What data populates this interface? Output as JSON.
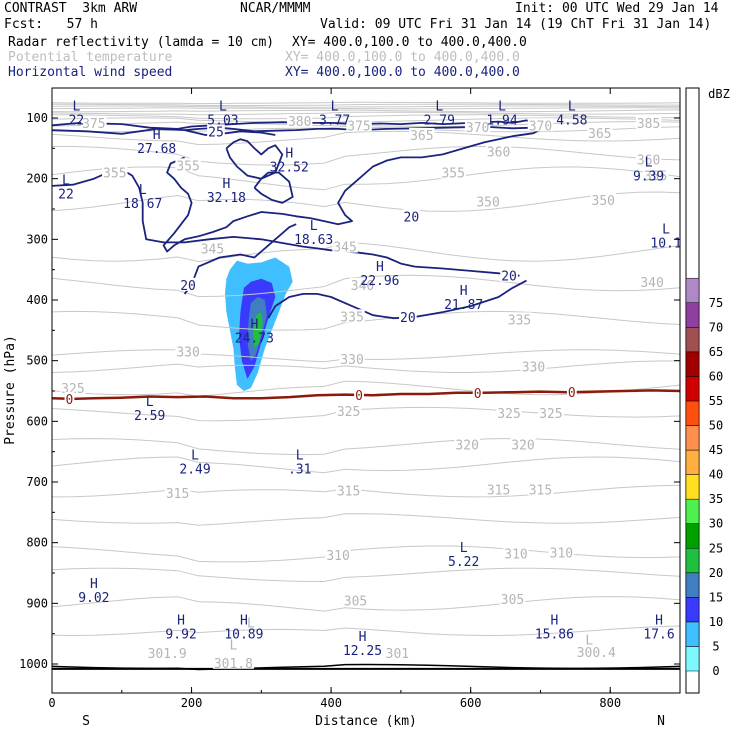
{
  "header": {
    "model": "CONTRAST  3km ARW",
    "center": "NCAR/MMMM",
    "init": "Init: 00 UTC Wed 29 Jan 14",
    "fcst": "Fcst:   57 h",
    "valid": "Valid: 09 UTC Fri 31 Jan 14 (19 ChT Fri 31 Jan 14)",
    "fields": [
      {
        "name": "Radar reflectivity (lamda = 10 cm)",
        "xy": "XY= 400.0,100.0 to 400.0,400.0",
        "color": "#000000"
      },
      {
        "name": "Potential temperature",
        "xy": "XY= 400.0,100.0 to 400.0,400.0",
        "color": "#bdbdbd"
      },
      {
        "name": "Horizontal wind speed",
        "xy": "XY= 400.0,100.0 to 400.0,400.0",
        "color": "#1a237e"
      }
    ]
  },
  "chart_data": {
    "type": "contour",
    "xlabel": "Distance (km)",
    "ylabel": "Pressure (hPa)",
    "xlim": [
      0,
      900
    ],
    "ylim": [
      1050,
      70
    ],
    "x_ticks": [
      "0",
      "200",
      "400",
      "600",
      "800"
    ],
    "y_ticks": [
      "100",
      "200",
      "300",
      "400",
      "500",
      "600",
      "700",
      "800",
      "900",
      "1000"
    ],
    "x_end_labels": {
      "left": "S",
      "right": "N"
    },
    "colorbar": {
      "unit": "dBZ",
      "levels": [
        "0",
        "5",
        "10",
        "15",
        "20",
        "25",
        "30",
        "35",
        "40",
        "45",
        "50",
        "55",
        "60",
        "65",
        "70",
        "75"
      ],
      "colors": [
        "#ffffff",
        "#7ff7ff",
        "#3fbfff",
        "#3a3aff",
        "#3f7fbf",
        "#1fbf3f",
        "#00a000",
        "#4fef4f",
        "#ffdf1f",
        "#ffaf3f",
        "#ff8f4f",
        "#ff4f0f",
        "#d00000",
        "#a00000",
        "#a05050",
        "#8f3fa0",
        "#b088c8"
      ]
    },
    "theta_labels": [
      {
        "text": "375",
        "x": 60,
        "p": 108
      },
      {
        "text": "380",
        "x": 355,
        "p": 105
      },
      {
        "text": "375",
        "x": 440,
        "p": 112
      },
      {
        "text": "370",
        "x": 610,
        "p": 115
      },
      {
        "text": "370",
        "x": 700,
        "p": 112
      },
      {
        "text": "365",
        "x": 785,
        "p": 125
      },
      {
        "text": "385",
        "x": 855,
        "p": 108
      },
      {
        "text": "365",
        "x": 530,
        "p": 128
      },
      {
        "text": "360",
        "x": 640,
        "p": 155
      },
      {
        "text": "360",
        "x": 855,
        "p": 168
      },
      {
        "text": "355",
        "x": 90,
        "p": 190
      },
      {
        "text": "355",
        "x": 195,
        "p": 178
      },
      {
        "text": "355",
        "x": 575,
        "p": 190
      },
      {
        "text": "355",
        "x": 865,
        "p": 195
      },
      {
        "text": "350",
        "x": 790,
        "p": 235
      },
      {
        "text": "350",
        "x": 625,
        "p": 238
      },
      {
        "text": "345",
        "x": 230,
        "p": 315
      },
      {
        "text": "345",
        "x": 420,
        "p": 312
      },
      {
        "text": "340",
        "x": 445,
        "p": 375
      },
      {
        "text": "340",
        "x": 860,
        "p": 370
      },
      {
        "text": "335",
        "x": 430,
        "p": 427
      },
      {
        "text": "335",
        "x": 670,
        "p": 432
      },
      {
        "text": "330",
        "x": 195,
        "p": 485
      },
      {
        "text": "330",
        "x": 430,
        "p": 497
      },
      {
        "text": "330",
        "x": 690,
        "p": 510
      },
      {
        "text": "325",
        "x": 30,
        "p": 545
      },
      {
        "text": "325",
        "x": 425,
        "p": 583
      },
      {
        "text": "325",
        "x": 655,
        "p": 586
      },
      {
        "text": "325",
        "x": 715,
        "p": 586
      },
      {
        "text": "320",
        "x": 595,
        "p": 638
      },
      {
        "text": "320",
        "x": 675,
        "p": 638
      },
      {
        "text": "315",
        "x": 180,
        "p": 718
      },
      {
        "text": "315",
        "x": 425,
        "p": 714
      },
      {
        "text": "315",
        "x": 640,
        "p": 712
      },
      {
        "text": "315",
        "x": 700,
        "p": 712
      },
      {
        "text": "310",
        "x": 410,
        "p": 820
      },
      {
        "text": "310",
        "x": 665,
        "p": 818
      },
      {
        "text": "310",
        "x": 730,
        "p": 816
      },
      {
        "text": "305",
        "x": 435,
        "p": 895
      },
      {
        "text": "305",
        "x": 660,
        "p": 893
      },
      {
        "text": "301",
        "x": 495,
        "p": 982
      },
      {
        "text": "301.9",
        "x": 165,
        "p": 982
      },
      {
        "text": "301.8",
        "x": 260,
        "p": 998
      },
      {
        "text": "300.4",
        "x": 780,
        "p": 980
      }
    ],
    "theta_LH": [
      {
        "text": "L",
        "x": 285,
        "p": 932
      },
      {
        "text": "L",
        "x": 260,
        "p": 968
      },
      {
        "text": "L",
        "x": 770,
        "p": 960
      }
    ],
    "wind_extrema": [
      {
        "kind": "L",
        "value": "22",
        "x": 35,
        "p": 88
      },
      {
        "kind": "L",
        "value": "5.03",
        "x": 245,
        "p": 88
      },
      {
        "kind": "L",
        "value": "3.77",
        "x": 405,
        "p": 88
      },
      {
        "kind": "L",
        "value": "2.79",
        "x": 555,
        "p": 88
      },
      {
        "kind": "L",
        "value": "1.94",
        "x": 645,
        "p": 88
      },
      {
        "kind": "L",
        "value": "4.58",
        "x": 745,
        "p": 88
      },
      {
        "kind": "H",
        "value": "27.68",
        "x": 150,
        "p": 135
      },
      {
        "kind": "H",
        "value": "32.52",
        "x": 340,
        "p": 165
      },
      {
        "kind": "H",
        "value": "32.18",
        "x": 250,
        "p": 215
      },
      {
        "kind": "L",
        "value": "18.67",
        "x": 130,
        "p": 225
      },
      {
        "kind": "L",
        "value": "22",
        "x": 20,
        "p": 210
      },
      {
        "kind": "L",
        "value": "9.39",
        "x": 855,
        "p": 180
      },
      {
        "kind": "L",
        "value": "18.63",
        "x": 375,
        "p": 285
      },
      {
        "kind": "L",
        "value": "10.1",
        "x": 880,
        "p": 290
      },
      {
        "kind": "H",
        "value": "22.96",
        "x": 470,
        "p": 352
      },
      {
        "kind": "H",
        "value": "21.87",
        "x": 590,
        "p": 392
      },
      {
        "kind": "H",
        "value": "24.73",
        "x": 290,
        "p": 447
      },
      {
        "kind": "L",
        "value": "2.59",
        "x": 140,
        "p": 575
      },
      {
        "kind": "L",
        "value": "2.49",
        "x": 205,
        "p": 663
      },
      {
        "kind": "L",
        "value": ".31",
        "x": 355,
        "p": 663
      },
      {
        "kind": "L",
        "value": "5.22",
        "x": 590,
        "p": 815
      },
      {
        "kind": "H",
        "value": "9.02",
        "x": 60,
        "p": 875
      },
      {
        "kind": "H",
        "value": "9.92",
        "x": 185,
        "p": 935
      },
      {
        "kind": "H",
        "value": "10.89",
        "x": 275,
        "p": 935
      },
      {
        "kind": "H",
        "value": "12.25",
        "x": 445,
        "p": 962
      },
      {
        "kind": "H",
        "value": "15.86",
        "x": 720,
        "p": 935
      },
      {
        "kind": "H",
        "value": "17.6",
        "x": 870,
        "p": 935
      }
    ],
    "wind_contour_labels": [
      {
        "text": "25",
        "x": 235,
        "p": 122
      },
      {
        "text": "20",
        "x": 195,
        "p": 375
      },
      {
        "text": "20",
        "x": 515,
        "p": 262
      },
      {
        "text": "20",
        "x": 655,
        "p": 360
      },
      {
        "text": "20",
        "x": 510,
        "p": 428
      }
    ],
    "wind_contours": [
      {
        "x": [
          0,
          40,
          100,
          140,
          180,
          200,
          230,
          260,
          290,
          330,
          360,
          400,
          440,
          470,
          500,
          530,
          560,
          600,
          640,
          660,
          680,
          700
        ],
        "p": [
          112,
          108,
          110,
          116,
          118,
          114,
          112,
          110,
          108,
          107,
          108,
          108,
          110,
          109,
          110,
          108,
          110,
          108,
          106,
          108,
          104,
          110
        ]
      },
      {
        "x": [
          0,
          50,
          100,
          150,
          190,
          220,
          250,
          270,
          300,
          320
        ],
        "p": [
          120,
          122,
          126,
          118,
          120,
          128,
          125,
          122,
          124,
          128
        ]
      },
      {
        "x": [
          190,
          210,
          240,
          260,
          290,
          320,
          350,
          380,
          410,
          440,
          480,
          520,
          560,
          600,
          630,
          660,
          690,
          700,
          690,
          660,
          640,
          620,
          590,
          560,
          530,
          500,
          480,
          460,
          440,
          420,
          410,
          420,
          430,
          410,
          390,
          370,
          350,
          330,
          300,
          280,
          260,
          250,
          230,
          210,
          190,
          175,
          165,
          160,
          175,
          195,
          200,
          195,
          185,
          175,
          165,
          170,
          190
        ],
        "p": [
          120,
          118,
          116,
          118,
          122,
          121,
          120,
          118,
          118,
          120,
          118,
          117,
          116,
          115,
          115,
          117,
          116,
          119,
          125,
          130,
          135,
          140,
          150,
          160,
          165,
          165,
          170,
          180,
          200,
          220,
          240,
          260,
          270,
          275,
          270,
          265,
          262,
          258,
          255,
          262,
          270,
          280,
          288,
          295,
          300,
          310,
          320,
          310,
          290,
          260,
          240,
          225,
          215,
          200,
          190,
          175,
          165
        ]
      },
      {
        "x": [
          0,
          30,
          60,
          80,
          100,
          115,
          125,
          130,
          130,
          135,
          160,
          190,
          225,
          260,
          300,
          330,
          360,
          380,
          400,
          420,
          440,
          460,
          480,
          500,
          520,
          560,
          600,
          630,
          660,
          670
        ],
        "p": [
          212,
          210,
          200,
          190,
          185,
          195,
          215,
          240,
          270,
          300,
          305,
          305,
          300,
          296,
          300,
          306,
          312,
          315,
          318,
          320,
          322,
          325,
          330,
          340,
          345,
          348,
          352,
          355,
          358,
          360
        ]
      },
      {
        "x": [
          190,
          200,
          205,
          210,
          220,
          240,
          270,
          290,
          300,
          310,
          320,
          330,
          340,
          350
        ],
        "p": [
          390,
          375,
          360,
          345,
          340,
          330,
          325,
          330,
          320,
          310,
          300,
          290,
          280,
          275
        ]
      },
      {
        "x": [
          310,
          320,
          340,
          360,
          380,
          400,
          430,
          460,
          490,
          520,
          560,
          600,
          640,
          660,
          680
        ],
        "p": [
          430,
          410,
          395,
          390,
          390,
          395,
          410,
          425,
          430,
          428,
          420,
          410,
          395,
          380,
          368
        ]
      },
      {
        "x": [
          250,
          260,
          270,
          280,
          290,
          300,
          310,
          320,
          330,
          320,
          300,
          280,
          265,
          255,
          250
        ],
        "p": [
          150,
          140,
          135,
          138,
          150,
          160,
          150,
          145,
          160,
          190,
          200,
          195,
          180,
          165,
          150
        ]
      },
      {
        "x": [
          290,
          300,
          310,
          325,
          340,
          345,
          330,
          315,
          300,
          290
        ],
        "p": [
          215,
          200,
          190,
          190,
          205,
          230,
          240,
          235,
          225,
          215
        ]
      }
    ],
    "zero_contour": {
      "label": "0",
      "x": [
        0,
        30,
        60,
        100,
        140,
        180,
        220,
        260,
        300,
        340,
        380,
        420,
        460,
        500,
        540,
        580,
        620,
        660,
        700,
        740,
        780,
        820,
        860,
        900
      ],
      "p": [
        562,
        563,
        562,
        561,
        559,
        560,
        559,
        562,
        562,
        560,
        557,
        556,
        557,
        555,
        555,
        553,
        553,
        552,
        551,
        552,
        551,
        550,
        549,
        550
      ]
    },
    "zero_labels": [
      {
        "x": 25,
        "p": 563
      },
      {
        "x": 440,
        "p": 557
      },
      {
        "x": 610,
        "p": 553
      },
      {
        "x": 745,
        "p": 552
      }
    ],
    "theta_lines": [
      {
        "p0": 1004,
        "amp": 4
      },
      {
        "p0": 945,
        "amp": 10
      },
      {
        "p0": 900,
        "amp": 14
      },
      {
        "p0": 850,
        "amp": 10
      },
      {
        "p0": 815,
        "amp": 12
      },
      {
        "p0": 760,
        "amp": 10
      },
      {
        "p0": 715,
        "amp": 12
      },
      {
        "p0": 670,
        "amp": 14
      },
      {
        "p0": 638,
        "amp": 12
      },
      {
        "p0": 585,
        "amp": 10
      },
      {
        "p0": 545,
        "amp": 14
      },
      {
        "p0": 510,
        "amp": 12
      },
      {
        "p0": 490,
        "amp": 10
      },
      {
        "p0": 430,
        "amp": 14
      },
      {
        "p0": 372,
        "amp": 16
      },
      {
        "p0": 320,
        "amp": 20
      },
      {
        "p0": 238,
        "amp": 20
      },
      {
        "p0": 195,
        "amp": 18
      },
      {
        "p0": 158,
        "amp": 14
      },
      {
        "p0": 130,
        "amp": 10
      },
      {
        "p0": 118,
        "amp": 6
      },
      {
        "p0": 110,
        "amp": 5
      },
      {
        "p0": 103,
        "amp": 4
      },
      {
        "p0": 97,
        "amp": 3
      },
      {
        "p0": 92,
        "amp": 2
      },
      {
        "p0": 88,
        "amp": 2
      },
      {
        "p0": 84,
        "amp": 1
      },
      {
        "p0": 81,
        "amp": 1
      },
      {
        "p0": 78,
        "amp": 1
      },
      {
        "p0": 75,
        "amp": 1
      }
    ],
    "surface_p": 1008,
    "reflectivity": [
      {
        "dbz": 5,
        "x": [
          255,
          265,
          280,
          300,
          320,
          340,
          345,
          335,
          325,
          315,
          305,
          295,
          285,
          275,
          265,
          262,
          260,
          255,
          250,
          248,
          250,
          255
        ],
        "p": [
          350,
          335,
          340,
          338,
          330,
          345,
          370,
          390,
          420,
          450,
          480,
          520,
          545,
          550,
          540,
          510,
          480,
          450,
          420,
          390,
          365,
          350
        ]
      },
      {
        "dbz": 10,
        "x": [
          275,
          285,
          300,
          315,
          320,
          310,
          300,
          290,
          280,
          272,
          268,
          270,
          275
        ],
        "p": [
          380,
          370,
          365,
          372,
          395,
          430,
          470,
          510,
          530,
          500,
          460,
          420,
          380
        ]
      },
      {
        "dbz": 15,
        "x": [
          285,
          295,
          305,
          308,
          300,
          292,
          285,
          280,
          282,
          285
        ],
        "p": [
          405,
          395,
          400,
          425,
          460,
          490,
          500,
          470,
          430,
          405
        ]
      },
      {
        "dbz": 20,
        "x": [
          293,
          300,
          302,
          297,
          290,
          288,
          293
        ],
        "p": [
          425,
          420,
          440,
          470,
          480,
          455,
          425
        ]
      }
    ]
  }
}
